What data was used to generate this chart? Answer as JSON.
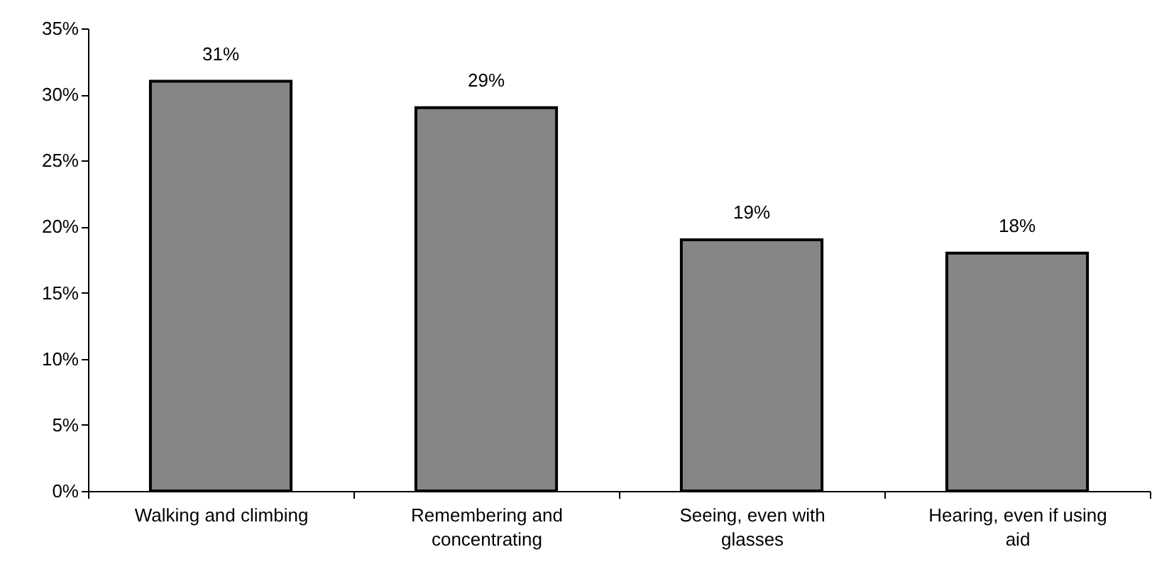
{
  "chart_data": {
    "type": "bar",
    "categories": [
      "Walking and climbing",
      "Remembering and concentrating",
      "Seeing, even with glasses",
      "Hearing, even if using aid"
    ],
    "values": [
      31,
      29,
      19,
      18
    ],
    "color": "#858585",
    "value_labels": [
      "31%",
      "29%",
      "19%",
      "18%"
    ],
    "ylim": [
      0,
      35
    ],
    "yticks": [
      {
        "value": 0,
        "label": "0%"
      },
      {
        "value": 5,
        "label": "5%"
      },
      {
        "value": 10,
        "label": "10%"
      },
      {
        "value": 15,
        "label": "15%"
      },
      {
        "value": 20,
        "label": "20%"
      },
      {
        "value": 25,
        "label": "25%"
      },
      {
        "value": 30,
        "label": "30%"
      },
      {
        "value": 35,
        "label": "35%"
      }
    ]
  }
}
